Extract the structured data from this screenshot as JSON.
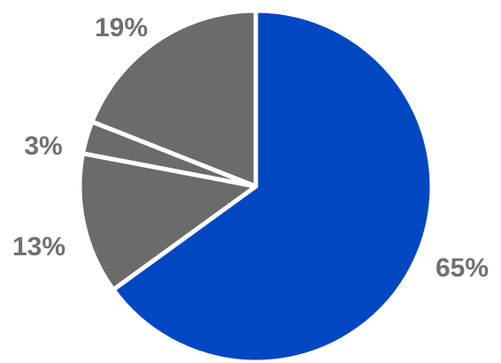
{
  "chart_data": {
    "type": "pie",
    "title": "",
    "slices": [
      {
        "value": 65,
        "label": "65%",
        "color": "#0047c2"
      },
      {
        "value": 13,
        "label": "13%",
        "color": "#6b6b6b"
      },
      {
        "value": 3,
        "label": "3%",
        "color": "#6b6b6b"
      },
      {
        "value": 19,
        "label": "19%",
        "color": "#6b6b6b"
      }
    ],
    "start_position": "top",
    "direction": "clockwise",
    "legend": "none",
    "label_color": "#707070",
    "separator_color": "#ffffff"
  }
}
